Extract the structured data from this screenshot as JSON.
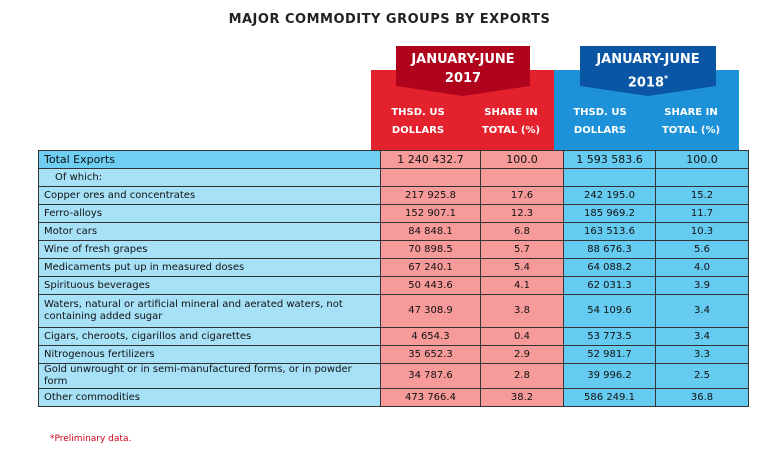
{
  "title": "MAJOR COMMODITY GROUPS BY EXPORTS",
  "groups": [
    {
      "label": "JANUARY-JUNE",
      "year": "2017"
    },
    {
      "label": "JANUARY-JUNE",
      "year": "2018",
      "note": "*"
    }
  ],
  "columns": [
    "THSD. US DOLLARS",
    "SHARE IN TOTAL (%)",
    "THSD. US DOLLARS",
    "SHARE IN TOTAL (%)"
  ],
  "rows": [
    [
      "Total Exports",
      "1 240 432.7",
      "100.0",
      "1 593 583.6",
      "100.0"
    ],
    [
      "Of which:"
    ],
    [
      "Copper ores and concentrates",
      "217 925.8",
      "17.6",
      "242 195.0",
      "15.2"
    ],
    [
      "Ferro-alloys",
      "152 907.1",
      "12.3",
      "185 969.2",
      "11.7"
    ],
    [
      "Motor cars",
      "84 848.1",
      "6.8",
      "163 513.6",
      "10.3"
    ],
    [
      "Wine of fresh grapes",
      "70 898.5",
      "5.7",
      "88 676.3",
      "5.6"
    ],
    [
      "Medicaments put up in measured doses",
      "67 240.1",
      "5.4",
      "64 088.2",
      "4.0"
    ],
    [
      "Spirituous beverages",
      "50 443.6",
      "4.1",
      "62 031.3",
      "3.9"
    ],
    [
      "Waters, natural or artificial mineral and aerated waters, not containing added sugar",
      "47 308.9",
      "3.8",
      "54 109.6",
      "3.4"
    ],
    [
      "Cigars, cheroots, cigarillos and cigarettes",
      "4 654.3",
      "0.4",
      "53 773.5",
      "3.4"
    ],
    [
      "Nitrogenous fertilizers",
      "35 652.3",
      "2.9",
      "52 981.7",
      "3.3"
    ],
    [
      "Gold unwrought or in semi-manufactured forms, or in powder form",
      "34 787.6",
      "2.8",
      "39 996.2",
      "2.5"
    ],
    [
      "Other commodities",
      "473 766.4",
      "38.2",
      "586 249.1",
      "36.8"
    ]
  ],
  "footnote": "*Preliminary data."
}
